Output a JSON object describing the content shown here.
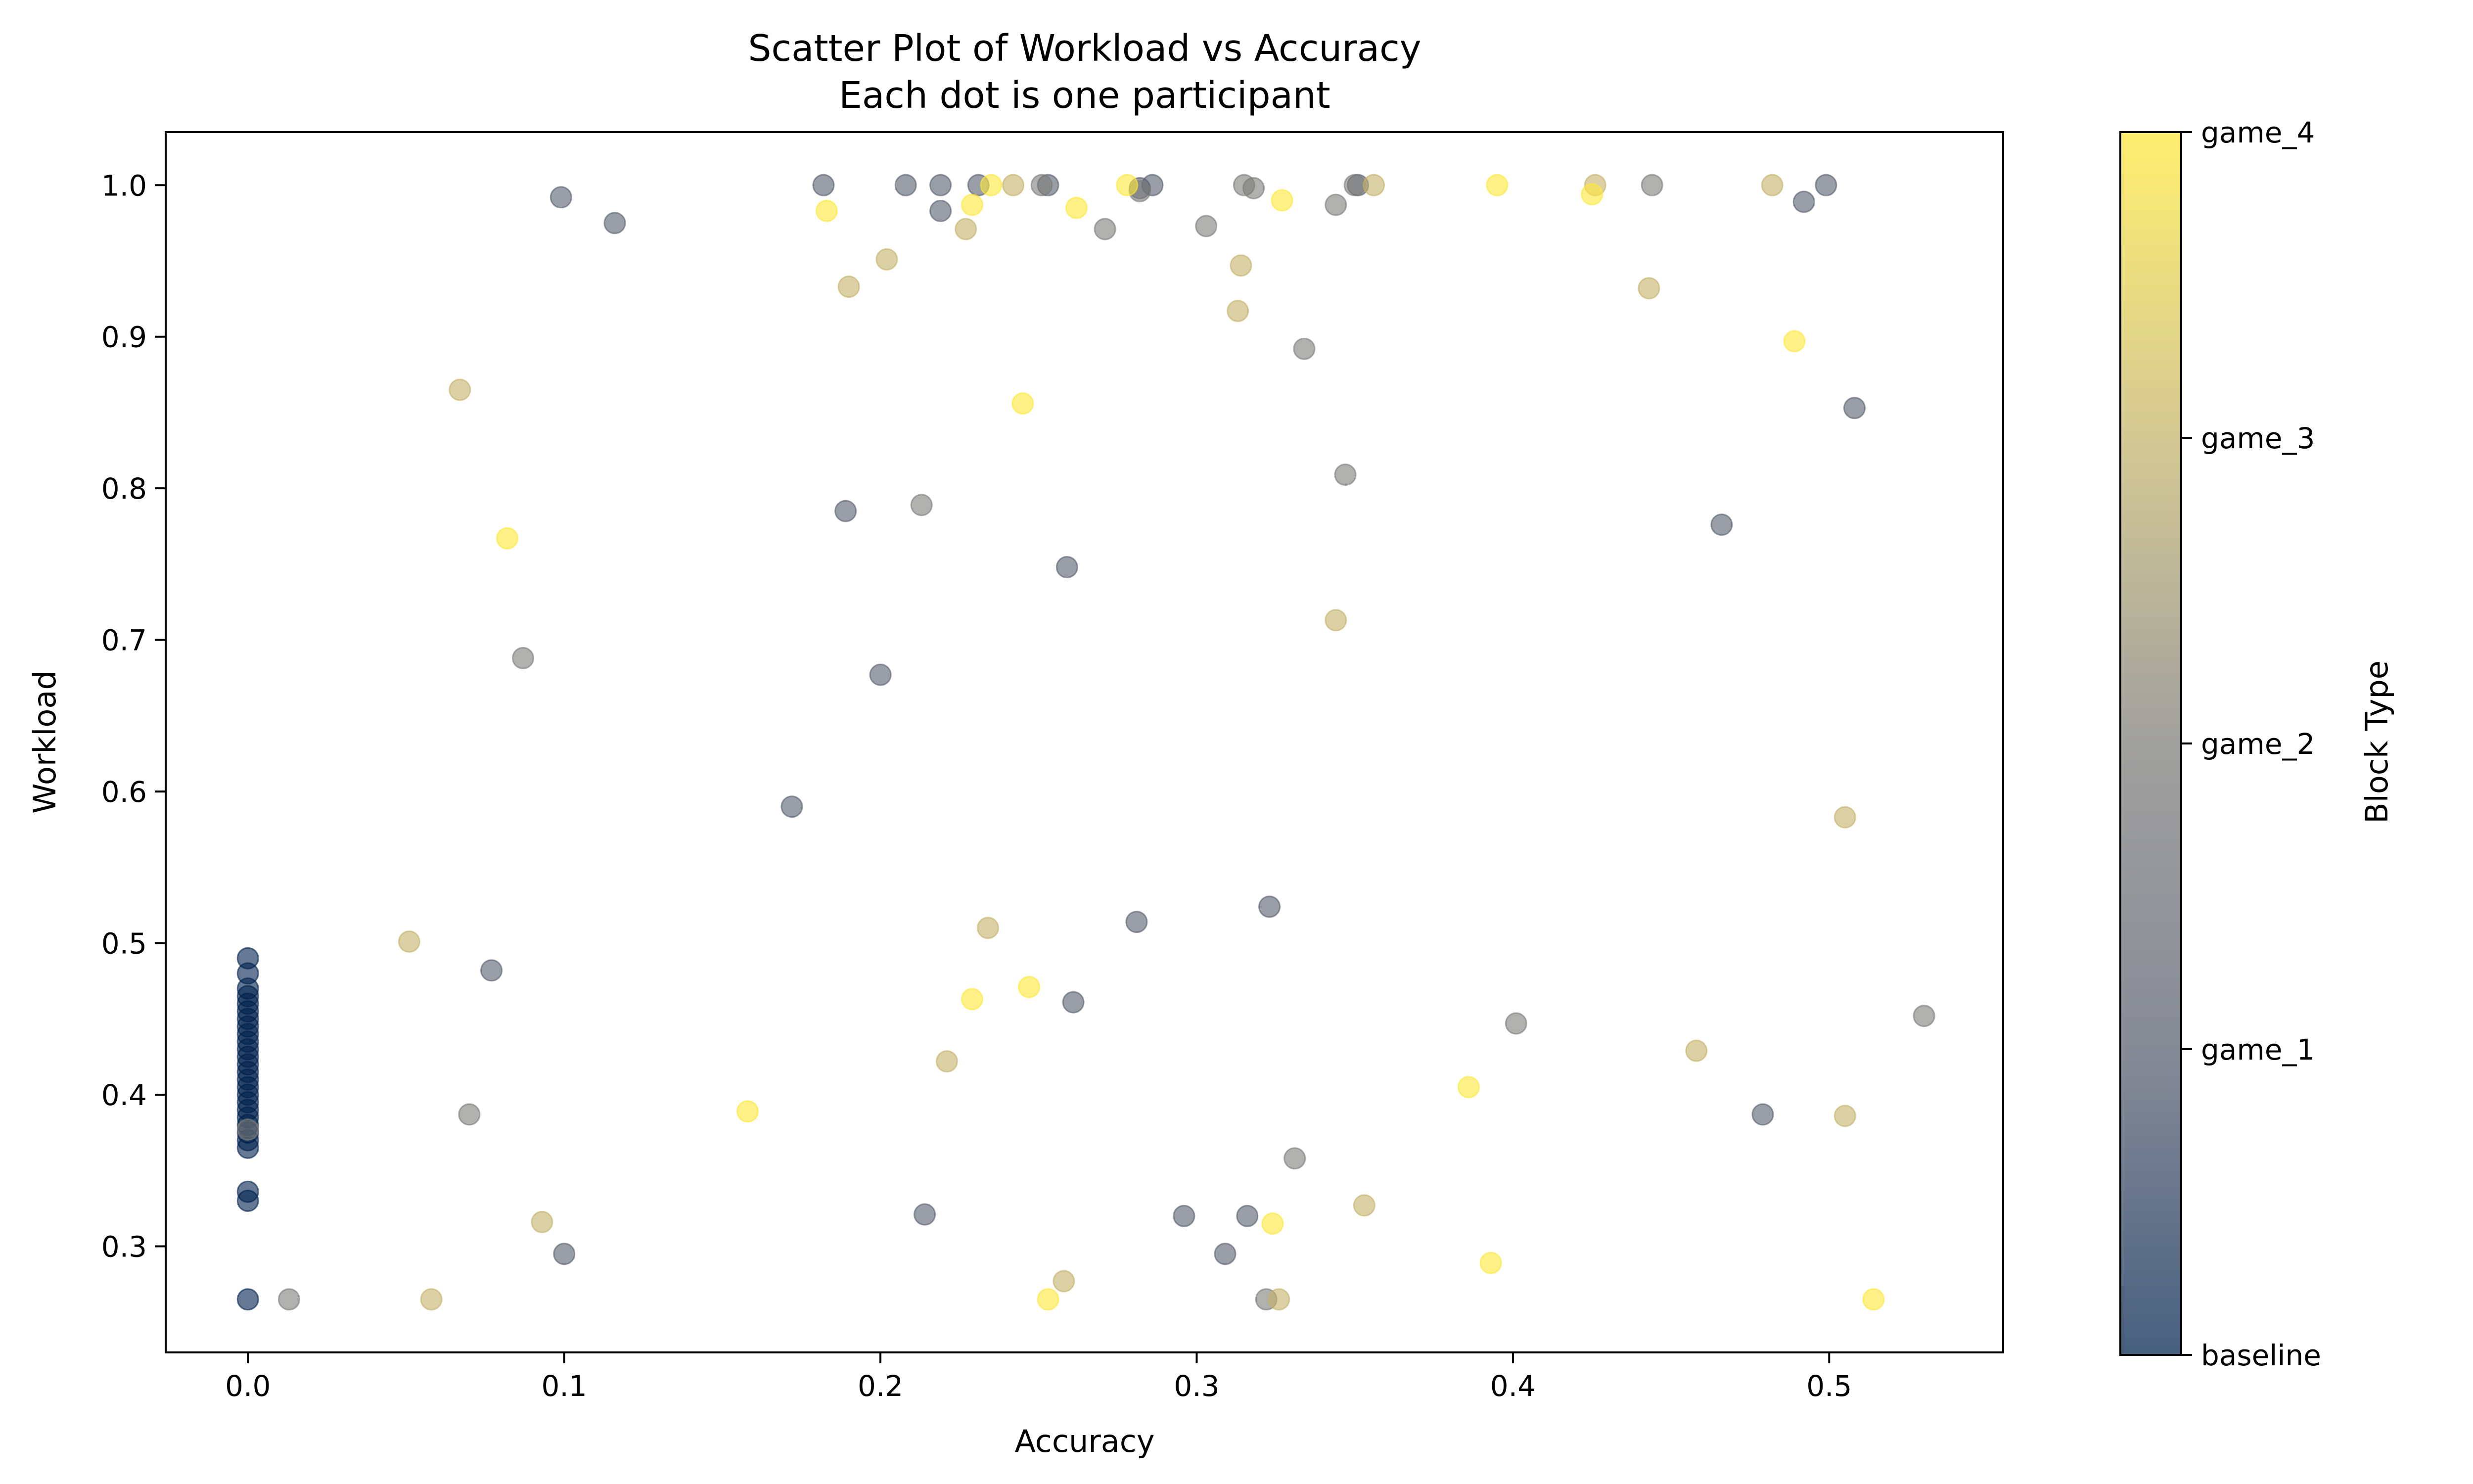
{
  "chart_data": {
    "type": "scatter",
    "title": "Scatter Plot of Workload vs Accuracy",
    "subtitle": "Each dot is one participant",
    "xlabel": "Accuracy",
    "ylabel": "Workload",
    "xlim": [
      -0.026,
      0.555
    ],
    "ylim": [
      0.23,
      1.035
    ],
    "xticks": [
      0.0,
      0.1,
      0.2,
      0.3,
      0.4,
      0.5
    ],
    "xtick_labels": [
      "0.0",
      "0.1",
      "0.2",
      "0.3",
      "0.4",
      "0.5"
    ],
    "yticks": [
      0.3,
      0.4,
      0.5,
      0.6,
      0.7,
      0.8,
      0.9,
      1.0
    ],
    "ytick_labels": [
      "0.3",
      "0.4",
      "0.5",
      "0.6",
      "0.7",
      "0.8",
      "0.9",
      "1.0"
    ],
    "grid": false,
    "marker_alpha": 0.6,
    "colormap": "cividis",
    "colorbar": {
      "label": "Block Type",
      "ticks": [
        "baseline",
        "game_1",
        "game_2",
        "game_3",
        "game_4"
      ],
      "colors": [
        "#00224e",
        "#575d6d",
        "#7c7b78",
        "#c3b369",
        "#fee838"
      ]
    },
    "series": [
      {
        "name": "baseline",
        "color": "#00224e",
        "points": [
          [
            0.0,
            0.49
          ],
          [
            0.0,
            0.48
          ],
          [
            0.0,
            0.47
          ],
          [
            0.0,
            0.465
          ],
          [
            0.0,
            0.46
          ],
          [
            0.0,
            0.455
          ],
          [
            0.0,
            0.45
          ],
          [
            0.0,
            0.445
          ],
          [
            0.0,
            0.44
          ],
          [
            0.0,
            0.435
          ],
          [
            0.0,
            0.43
          ],
          [
            0.0,
            0.425
          ],
          [
            0.0,
            0.42
          ],
          [
            0.0,
            0.415
          ],
          [
            0.0,
            0.41
          ],
          [
            0.0,
            0.405
          ],
          [
            0.0,
            0.4
          ],
          [
            0.0,
            0.395
          ],
          [
            0.0,
            0.39
          ],
          [
            0.0,
            0.385
          ],
          [
            0.0,
            0.38
          ],
          [
            0.0,
            0.375
          ],
          [
            0.0,
            0.37
          ],
          [
            0.0,
            0.365
          ],
          [
            0.0,
            0.336
          ],
          [
            0.0,
            0.33
          ],
          [
            0.0,
            0.265
          ]
        ]
      },
      {
        "name": "game_1",
        "color": "#575d6d",
        "points": [
          [
            0.099,
            0.992
          ],
          [
            0.116,
            0.975
          ],
          [
            0.182,
            1.0
          ],
          [
            0.208,
            1.0
          ],
          [
            0.219,
            1.0
          ],
          [
            0.219,
            0.983
          ],
          [
            0.231,
            1.0
          ],
          [
            0.253,
            1.0
          ],
          [
            0.282,
            0.998
          ],
          [
            0.286,
            1.0
          ],
          [
            0.351,
            1.0
          ],
          [
            0.492,
            0.989
          ],
          [
            0.499,
            1.0
          ],
          [
            0.508,
            0.853
          ],
          [
            0.466,
            0.776
          ],
          [
            0.189,
            0.785
          ],
          [
            0.259,
            0.748
          ],
          [
            0.2,
            0.677
          ],
          [
            0.172,
            0.59
          ],
          [
            0.077,
            0.482
          ],
          [
            0.281,
            0.514
          ],
          [
            0.323,
            0.524
          ],
          [
            0.261,
            0.461
          ],
          [
            0.479,
            0.387
          ],
          [
            0.214,
            0.321
          ],
          [
            0.296,
            0.32
          ],
          [
            0.316,
            0.32
          ],
          [
            0.309,
            0.295
          ],
          [
            0.1,
            0.295
          ]
        ]
      },
      {
        "name": "game_2",
        "color": "#7c7b78",
        "points": [
          [
            0.271,
            0.971
          ],
          [
            0.282,
            0.996
          ],
          [
            0.303,
            0.973
          ],
          [
            0.315,
            1.0
          ],
          [
            0.318,
            0.998
          ],
          [
            0.344,
            0.987
          ],
          [
            0.35,
            1.0
          ],
          [
            0.444,
            1.0
          ],
          [
            0.251,
            1.0
          ],
          [
            0.334,
            0.892
          ],
          [
            0.347,
            0.809
          ],
          [
            0.213,
            0.789
          ],
          [
            0.087,
            0.688
          ],
          [
            0.401,
            0.447
          ],
          [
            0.53,
            0.452
          ],
          [
            0.07,
            0.387
          ],
          [
            0.331,
            0.358
          ],
          [
            0.322,
            0.265
          ],
          [
            0.013,
            0.265
          ],
          [
            0.0,
            0.377
          ]
        ]
      },
      {
        "name": "game_3",
        "color": "#c3b369",
        "points": [
          [
            0.227,
            0.971
          ],
          [
            0.242,
            1.0
          ],
          [
            0.202,
            0.951
          ],
          [
            0.19,
            0.933
          ],
          [
            0.314,
            0.947
          ],
          [
            0.313,
            0.917
          ],
          [
            0.356,
            1.0
          ],
          [
            0.426,
            1.0
          ],
          [
            0.482,
            1.0
          ],
          [
            0.443,
            0.932
          ],
          [
            0.067,
            0.865
          ],
          [
            0.344,
            0.713
          ],
          [
            0.505,
            0.583
          ],
          [
            0.051,
            0.501
          ],
          [
            0.234,
            0.51
          ],
          [
            0.221,
            0.422
          ],
          [
            0.458,
            0.429
          ],
          [
            0.505,
            0.386
          ],
          [
            0.353,
            0.327
          ],
          [
            0.093,
            0.316
          ],
          [
            0.258,
            0.277
          ],
          [
            0.058,
            0.265
          ],
          [
            0.326,
            0.265
          ]
        ]
      },
      {
        "name": "game_4",
        "color": "#fee838",
        "points": [
          [
            0.183,
            0.983
          ],
          [
            0.229,
            0.987
          ],
          [
            0.235,
            1.0
          ],
          [
            0.262,
            0.985
          ],
          [
            0.278,
            1.0
          ],
          [
            0.327,
            0.99
          ],
          [
            0.395,
            1.0
          ],
          [
            0.425,
            0.994
          ],
          [
            0.489,
            0.897
          ],
          [
            0.245,
            0.856
          ],
          [
            0.082,
            0.767
          ],
          [
            0.229,
            0.463
          ],
          [
            0.247,
            0.471
          ],
          [
            0.158,
            0.389
          ],
          [
            0.386,
            0.405
          ],
          [
            0.324,
            0.315
          ],
          [
            0.393,
            0.289
          ],
          [
            0.253,
            0.265
          ],
          [
            0.514,
            0.265
          ]
        ]
      }
    ]
  }
}
